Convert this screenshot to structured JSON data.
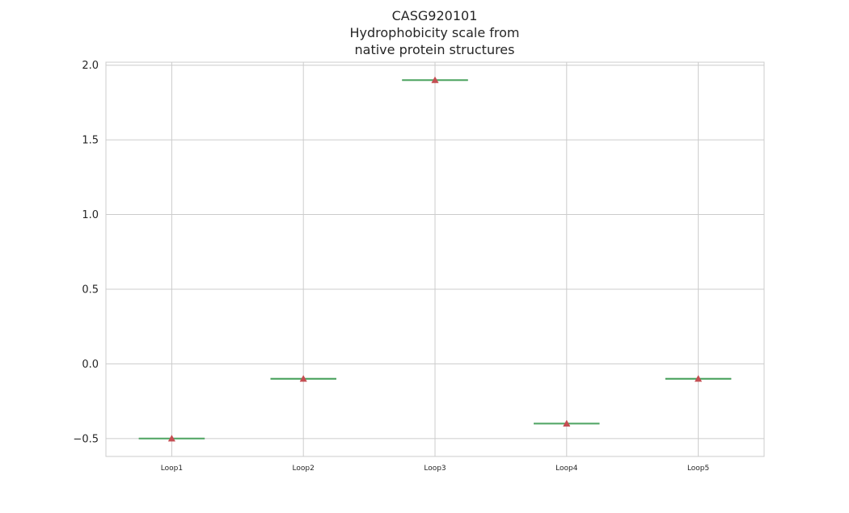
{
  "chart_data": {
    "type": "box",
    "title_lines": [
      "CASG920101",
      "Hydrophobicity scale from",
      "native protein structures"
    ],
    "categories": [
      "Loop1",
      "Loop2",
      "Loop3",
      "Loop4",
      "Loop5"
    ],
    "values": [
      -0.5,
      -0.1,
      1.9,
      -0.4,
      -0.1
    ],
    "ylim": [
      -0.62,
      2.02
    ],
    "yticks": [
      -0.5,
      0.0,
      0.5,
      1.0,
      1.5,
      2.0
    ],
    "ytick_labels": [
      "−0.5",
      "0.0",
      "0.5",
      "1.0",
      "1.5",
      "2.0"
    ],
    "xlabel": "",
    "ylabel": "",
    "grid": true,
    "colors": {
      "median": "#55a868",
      "mean_marker": "#c44e52",
      "grid": "#cccccc",
      "spine": "#cccccc",
      "text": "#262626"
    }
  }
}
